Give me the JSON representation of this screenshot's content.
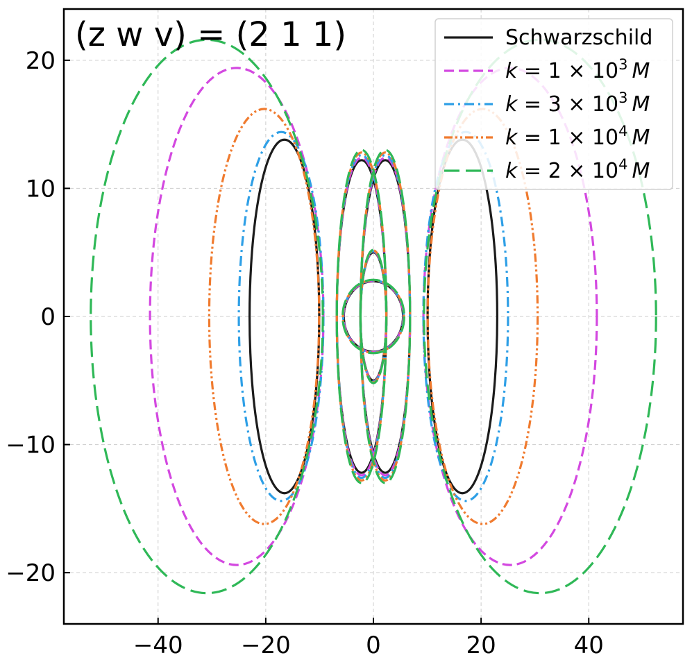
{
  "chart_data": {
    "type": "line",
    "title": "",
    "annotation": {
      "text": "(z w v) = (2 1 1)",
      "position": "top-left"
    },
    "xlabel": "",
    "ylabel": "",
    "xlim": [
      -57.5,
      57.5
    ],
    "ylim": [
      -24.0,
      24.0
    ],
    "xticks": [
      -40,
      -20,
      0,
      20,
      40
    ],
    "xtick_labels": [
      "−40",
      "−20",
      "0",
      "20",
      "40"
    ],
    "yticks": [
      -20,
      -10,
      0,
      10,
      20
    ],
    "ytick_labels": [
      "−20",
      "−10",
      "0",
      "10",
      "20"
    ],
    "grid": true,
    "legend_position": "top-right",
    "orbit_shape": {
      "inner_petal_radius": 5.0,
      "petals": 4
    },
    "series": [
      {
        "name": "Schwarzschild",
        "legend_text": "Schwarzschild",
        "color": "#1b1b1b",
        "dash": "solid",
        "outer_lobe_max_x": 23.0,
        "outer_lobe_max_y": 14.3,
        "crossing_y": 12.7
      },
      {
        "name": "k = 1 × 10^3 M",
        "legend_text": {
          "k": "k",
          "eq": " = 1 × 10",
          "exp": "3",
          "unit": "M"
        },
        "color": "#d348e0",
        "dash": "dash",
        "outer_lobe_max_x": 41.5,
        "outer_lobe_max_y": 19.9,
        "crossing_y": 15.0
      },
      {
        "name": "k = 3 × 10^3 M",
        "legend_text": {
          "k": "k",
          "eq": " = 3 × 10",
          "exp": "3",
          "unit": "M"
        },
        "color": "#2e9fe6",
        "dash": "dashdot",
        "outer_lobe_max_x": 25.0,
        "outer_lobe_max_y": 14.9,
        "crossing_y": 12.8
      },
      {
        "name": "k = 1 × 10^4 M",
        "legend_text": {
          "k": "k",
          "eq": " = 1 × 10",
          "exp": "4",
          "unit": "M"
        },
        "color": "#f07b2f",
        "dash": "dashdotdot",
        "outer_lobe_max_x": 30.5,
        "outer_lobe_max_y": 16.7,
        "crossing_y": 14.0
      },
      {
        "name": "k = 2 × 10^4 M",
        "legend_text": {
          "k": "k",
          "eq": " = 2 × 10",
          "exp": "4",
          "unit": "M"
        },
        "color": "#2fb857",
        "dash": "longdash",
        "outer_lobe_max_x": 52.5,
        "outer_lobe_max_y": 22.1,
        "crossing_y": 15.5
      }
    ]
  }
}
